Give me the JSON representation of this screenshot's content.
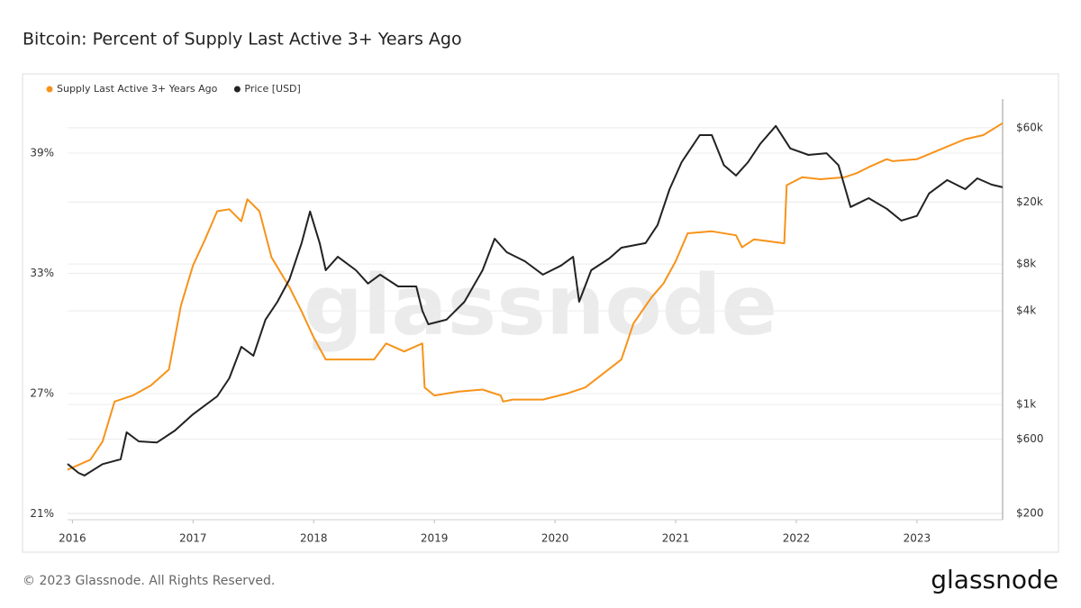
{
  "chart_data": {
    "type": "line",
    "title": "Bitcoin: Percent of Supply Last Active 3+ Years Ago",
    "watermark": "glassnode",
    "xlim": [
      2015.96,
      2023.71
    ],
    "xticks": [
      2016,
      2017,
      2018,
      2019,
      2020,
      2021,
      2022,
      2023
    ],
    "ylim": [
      20.7,
      41.7
    ],
    "yticks": [
      {
        "value": 21,
        "label": "21%"
      },
      {
        "value": 27,
        "label": "27%"
      },
      {
        "value": 33,
        "label": "33%"
      },
      {
        "value": 39,
        "label": "39%"
      }
    ],
    "y2lim": [
      182,
      91800
    ],
    "y2log": true,
    "y2ticks": [
      {
        "value": 200,
        "label": "$200"
      },
      {
        "value": 600,
        "label": "$600"
      },
      {
        "value": 1000,
        "label": "$1k"
      },
      {
        "value": 4000,
        "label": "$4k"
      },
      {
        "value": 8000,
        "label": "$8k"
      },
      {
        "value": 20000,
        "label": "$20k"
      },
      {
        "value": 60000,
        "label": "$60k"
      }
    ],
    "grid": true,
    "legend": "top-left",
    "series": [
      {
        "name": "Supply Last Active 3+ Years Ago",
        "color": "#f7931a",
        "x": [
          2015.96,
          2016.0,
          2016.15,
          2016.25,
          2016.35,
          2016.5,
          2016.65,
          2016.8,
          2016.9,
          2017.0,
          2017.1,
          2017.2,
          2017.3,
          2017.4,
          2017.45,
          2017.55,
          2017.65,
          2017.8,
          2017.9,
          2018.0,
          2018.1,
          2018.3,
          2018.5,
          2018.6,
          2018.75,
          2018.9,
          2018.92,
          2019.0,
          2019.2,
          2019.4,
          2019.55,
          2019.57,
          2019.65,
          2019.9,
          2020.1,
          2020.25,
          2020.4,
          2020.55,
          2020.65,
          2020.8,
          2020.9,
          2021.0,
          2021.1,
          2021.3,
          2021.5,
          2021.55,
          2021.65,
          2021.9,
          2021.92,
          2022.05,
          2022.2,
          2022.4,
          2022.5,
          2022.6,
          2022.75,
          2022.8,
          2023.0,
          2023.2,
          2023.4,
          2023.55,
          2023.71
        ],
        "values": [
          23.2,
          23.3,
          23.7,
          24.6,
          26.6,
          26.9,
          27.4,
          28.2,
          31.4,
          33.4,
          34.7,
          36.1,
          36.2,
          35.6,
          36.7,
          36.1,
          33.8,
          32.3,
          31.1,
          29.8,
          28.7,
          28.7,
          28.7,
          29.5,
          29.1,
          29.5,
          27.3,
          26.9,
          27.1,
          27.2,
          26.9,
          26.6,
          26.7,
          26.7,
          27.0,
          27.3,
          28.0,
          28.7,
          30.5,
          31.8,
          32.5,
          33.6,
          35.0,
          35.1,
          34.9,
          34.3,
          34.7,
          34.5,
          37.4,
          37.8,
          37.7,
          37.8,
          38.0,
          38.3,
          38.7,
          38.6,
          38.7,
          39.2,
          39.7,
          39.9,
          40.5
        ]
      },
      {
        "name": "Price [USD]",
        "color": "#222222",
        "axis": "y2",
        "x": [
          2015.96,
          2016.05,
          2016.1,
          2016.25,
          2016.4,
          2016.45,
          2016.55,
          2016.7,
          2016.85,
          2017.0,
          2017.1,
          2017.2,
          2017.3,
          2017.4,
          2017.5,
          2017.6,
          2017.7,
          2017.8,
          2017.9,
          2017.97,
          2018.05,
          2018.1,
          2018.2,
          2018.35,
          2018.45,
          2018.55,
          2018.7,
          2018.85,
          2018.9,
          2018.95,
          2019.1,
          2019.25,
          2019.4,
          2019.5,
          2019.6,
          2019.75,
          2019.9,
          2020.05,
          2020.15,
          2020.2,
          2020.3,
          2020.45,
          2020.55,
          2020.75,
          2020.85,
          2020.95,
          2021.05,
          2021.2,
          2021.3,
          2021.4,
          2021.5,
          2021.6,
          2021.7,
          2021.83,
          2021.95,
          2022.1,
          2022.25,
          2022.35,
          2022.45,
          2022.6,
          2022.75,
          2022.87,
          2023.0,
          2023.1,
          2023.25,
          2023.4,
          2023.5,
          2023.62,
          2023.71
        ],
        "values": [
          416,
          364,
          350,
          414,
          445,
          664,
          580,
          570,
          681,
          866,
          990,
          1130,
          1475,
          2350,
          2060,
          3510,
          4580,
          6390,
          10900,
          17400,
          10900,
          7300,
          8900,
          7300,
          5990,
          6840,
          5740,
          5740,
          4010,
          3280,
          3510,
          4580,
          7300,
          11640,
          9530,
          8340,
          6840,
          7820,
          8900,
          4580,
          7300,
          8690,
          10190,
          10900,
          14220,
          24200,
          36100,
          53900,
          53900,
          34500,
          29600,
          36100,
          47200,
          61700,
          44200,
          40200,
          41200,
          34500,
          18600,
          21200,
          18100,
          15200,
          16300,
          22700,
          27700,
          24200,
          28400,
          25900,
          24900
        ]
      }
    ]
  },
  "footer": {
    "copyright": "© 2023 Glassnode. All Rights Reserved.",
    "logo": "glassnode"
  }
}
